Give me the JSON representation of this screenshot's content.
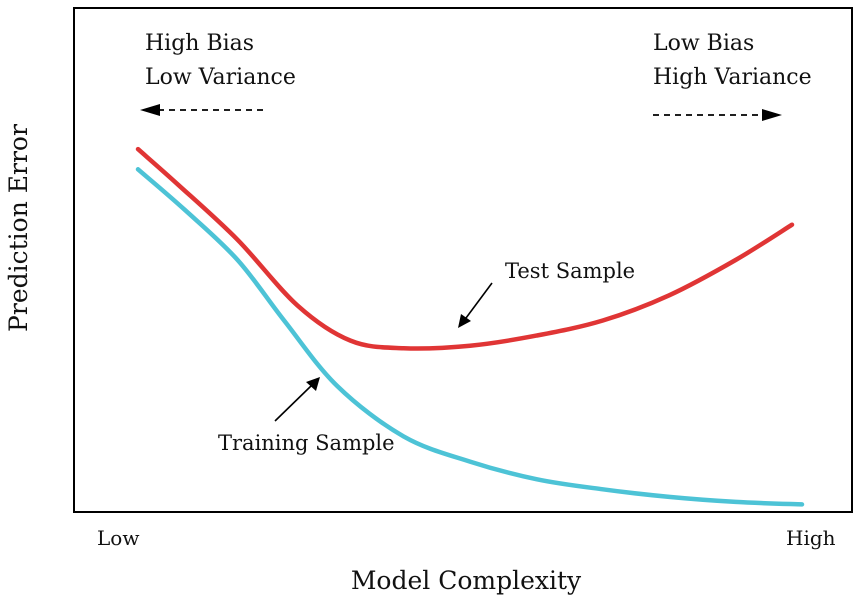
{
  "chart_data": {
    "type": "line",
    "title": "",
    "xlabel": "Model Complexity",
    "ylabel": "Prediction Error",
    "x_tick_labels": [
      "Low",
      "High"
    ],
    "xlim": [
      0,
      1
    ],
    "ylim": [
      0,
      1
    ],
    "grid": false,
    "series": [
      {
        "name": "Test Sample",
        "color": "#e03535",
        "x": [
          0.0,
          0.06,
          0.15,
          0.24,
          0.32,
          0.4,
          0.5,
          0.6,
          0.7,
          0.8,
          0.9,
          0.985
        ],
        "y": [
          0.72,
          0.65,
          0.54,
          0.41,
          0.34,
          0.325,
          0.33,
          0.35,
          0.38,
          0.43,
          0.5,
          0.57
        ]
      },
      {
        "name": "Training Sample",
        "color": "#4dc3d6",
        "x": [
          0.0,
          0.07,
          0.15,
          0.22,
          0.3,
          0.4,
          0.5,
          0.6,
          0.7,
          0.8,
          0.9,
          1.0
        ],
        "y": [
          0.68,
          0.6,
          0.5,
          0.38,
          0.25,
          0.15,
          0.1,
          0.065,
          0.045,
          0.03,
          0.02,
          0.015
        ]
      }
    ],
    "annotations": {
      "left_region": [
        "High Bias",
        "Low Variance"
      ],
      "right_region": [
        "Low Bias",
        "High Variance"
      ],
      "test_label": "Test Sample",
      "train_label": "Training Sample"
    }
  }
}
